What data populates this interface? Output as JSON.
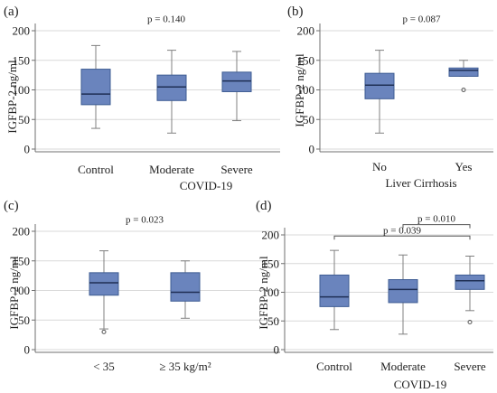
{
  "colors": {
    "box_fill": "#6a84bd",
    "box_stroke": "#3e5c93",
    "median": "#1f2f55",
    "axis": "#6f6f6f",
    "grid": "#d9d9d9"
  },
  "chart_data": [
    {
      "type": "box",
      "panel": "(a)",
      "ylabel": "IGFBP-2 ng/ml",
      "xlabel": "COVID-19",
      "ylim": [
        0,
        200
      ],
      "yticks": [
        0,
        50,
        100,
        150,
        200
      ],
      "grid": true,
      "categories": [
        "Control",
        "Moderate",
        "Severe"
      ],
      "boxes": [
        {
          "min": 35,
          "q1": 75,
          "median": 93,
          "q3": 135,
          "max": 175,
          "outliers": []
        },
        {
          "min": 27,
          "q1": 82,
          "median": 105,
          "q3": 125,
          "max": 167,
          "outliers": []
        },
        {
          "min": 48,
          "q1": 97,
          "median": 115,
          "q3": 130,
          "max": 165,
          "outliers": []
        }
      ],
      "annotations": [
        {
          "text": "p = 0.140",
          "from": 0,
          "to": 2,
          "y": 210,
          "bracket": false
        }
      ]
    },
    {
      "type": "box",
      "panel": "(b)",
      "ylabel": "IGFBP-2 ng/ml",
      "xlabel": "Liver Cirrhosis",
      "ylim": [
        0,
        200
      ],
      "yticks": [
        0,
        50,
        100,
        150,
        200
      ],
      "grid": true,
      "categories": [
        "No",
        "Yes"
      ],
      "boxes": [
        {
          "min": 27,
          "q1": 85,
          "median": 108,
          "q3": 128,
          "max": 167,
          "outliers": []
        },
        {
          "min": 123,
          "q1": 123,
          "median": 133,
          "q3": 137,
          "max": 150,
          "outliers": [
            100
          ]
        }
      ],
      "annotations": [
        {
          "text": "p = 0.087",
          "from": 0,
          "to": 1,
          "y": 210,
          "bracket": false
        }
      ]
    },
    {
      "type": "box",
      "panel": "(c)",
      "ylabel": "IGFBP-2 ng/ml",
      "xlabel": "",
      "ylim": [
        0,
        200
      ],
      "yticks": [
        0,
        50,
        100,
        150,
        200
      ],
      "grid": true,
      "categories": [
        "< 35",
        "≥ 35 kg/m²"
      ],
      "boxes": [
        {
          "min": 35,
          "q1": 92,
          "median": 113,
          "q3": 130,
          "max": 167,
          "outliers": [
            30
          ]
        },
        {
          "min": 53,
          "q1": 82,
          "median": 97,
          "q3": 130,
          "max": 150,
          "outliers": []
        }
      ],
      "annotations": [
        {
          "text": "p = 0.023",
          "from": 0,
          "to": 1,
          "y": 210,
          "bracket": false
        }
      ]
    },
    {
      "type": "box",
      "panel": "(d)",
      "ylabel": "IGFBP-2 ng/ml",
      "xlabel": "COVID-19",
      "ylim": [
        0,
        200
      ],
      "yticks": [
        0,
        50,
        100,
        150,
        200
      ],
      "grid": true,
      "categories": [
        "Control",
        "Moderate",
        "Severe"
      ],
      "boxes": [
        {
          "min": 35,
          "q1": 75,
          "median": 92,
          "q3": 130,
          "max": 173,
          "outliers": []
        },
        {
          "min": 27,
          "q1": 82,
          "median": 105,
          "q3": 122,
          "max": 165,
          "outliers": []
        },
        {
          "min": 68,
          "q1": 105,
          "median": 120,
          "q3": 130,
          "max": 163,
          "outliers": [
            48
          ]
        }
      ],
      "annotations": [
        {
          "text": "p = 0.039",
          "from": 0,
          "to": 2,
          "y": 198,
          "bracket": true
        },
        {
          "text": "p = 0.010",
          "from": 1,
          "to": 2,
          "y": 218,
          "bracket": true
        }
      ]
    }
  ]
}
